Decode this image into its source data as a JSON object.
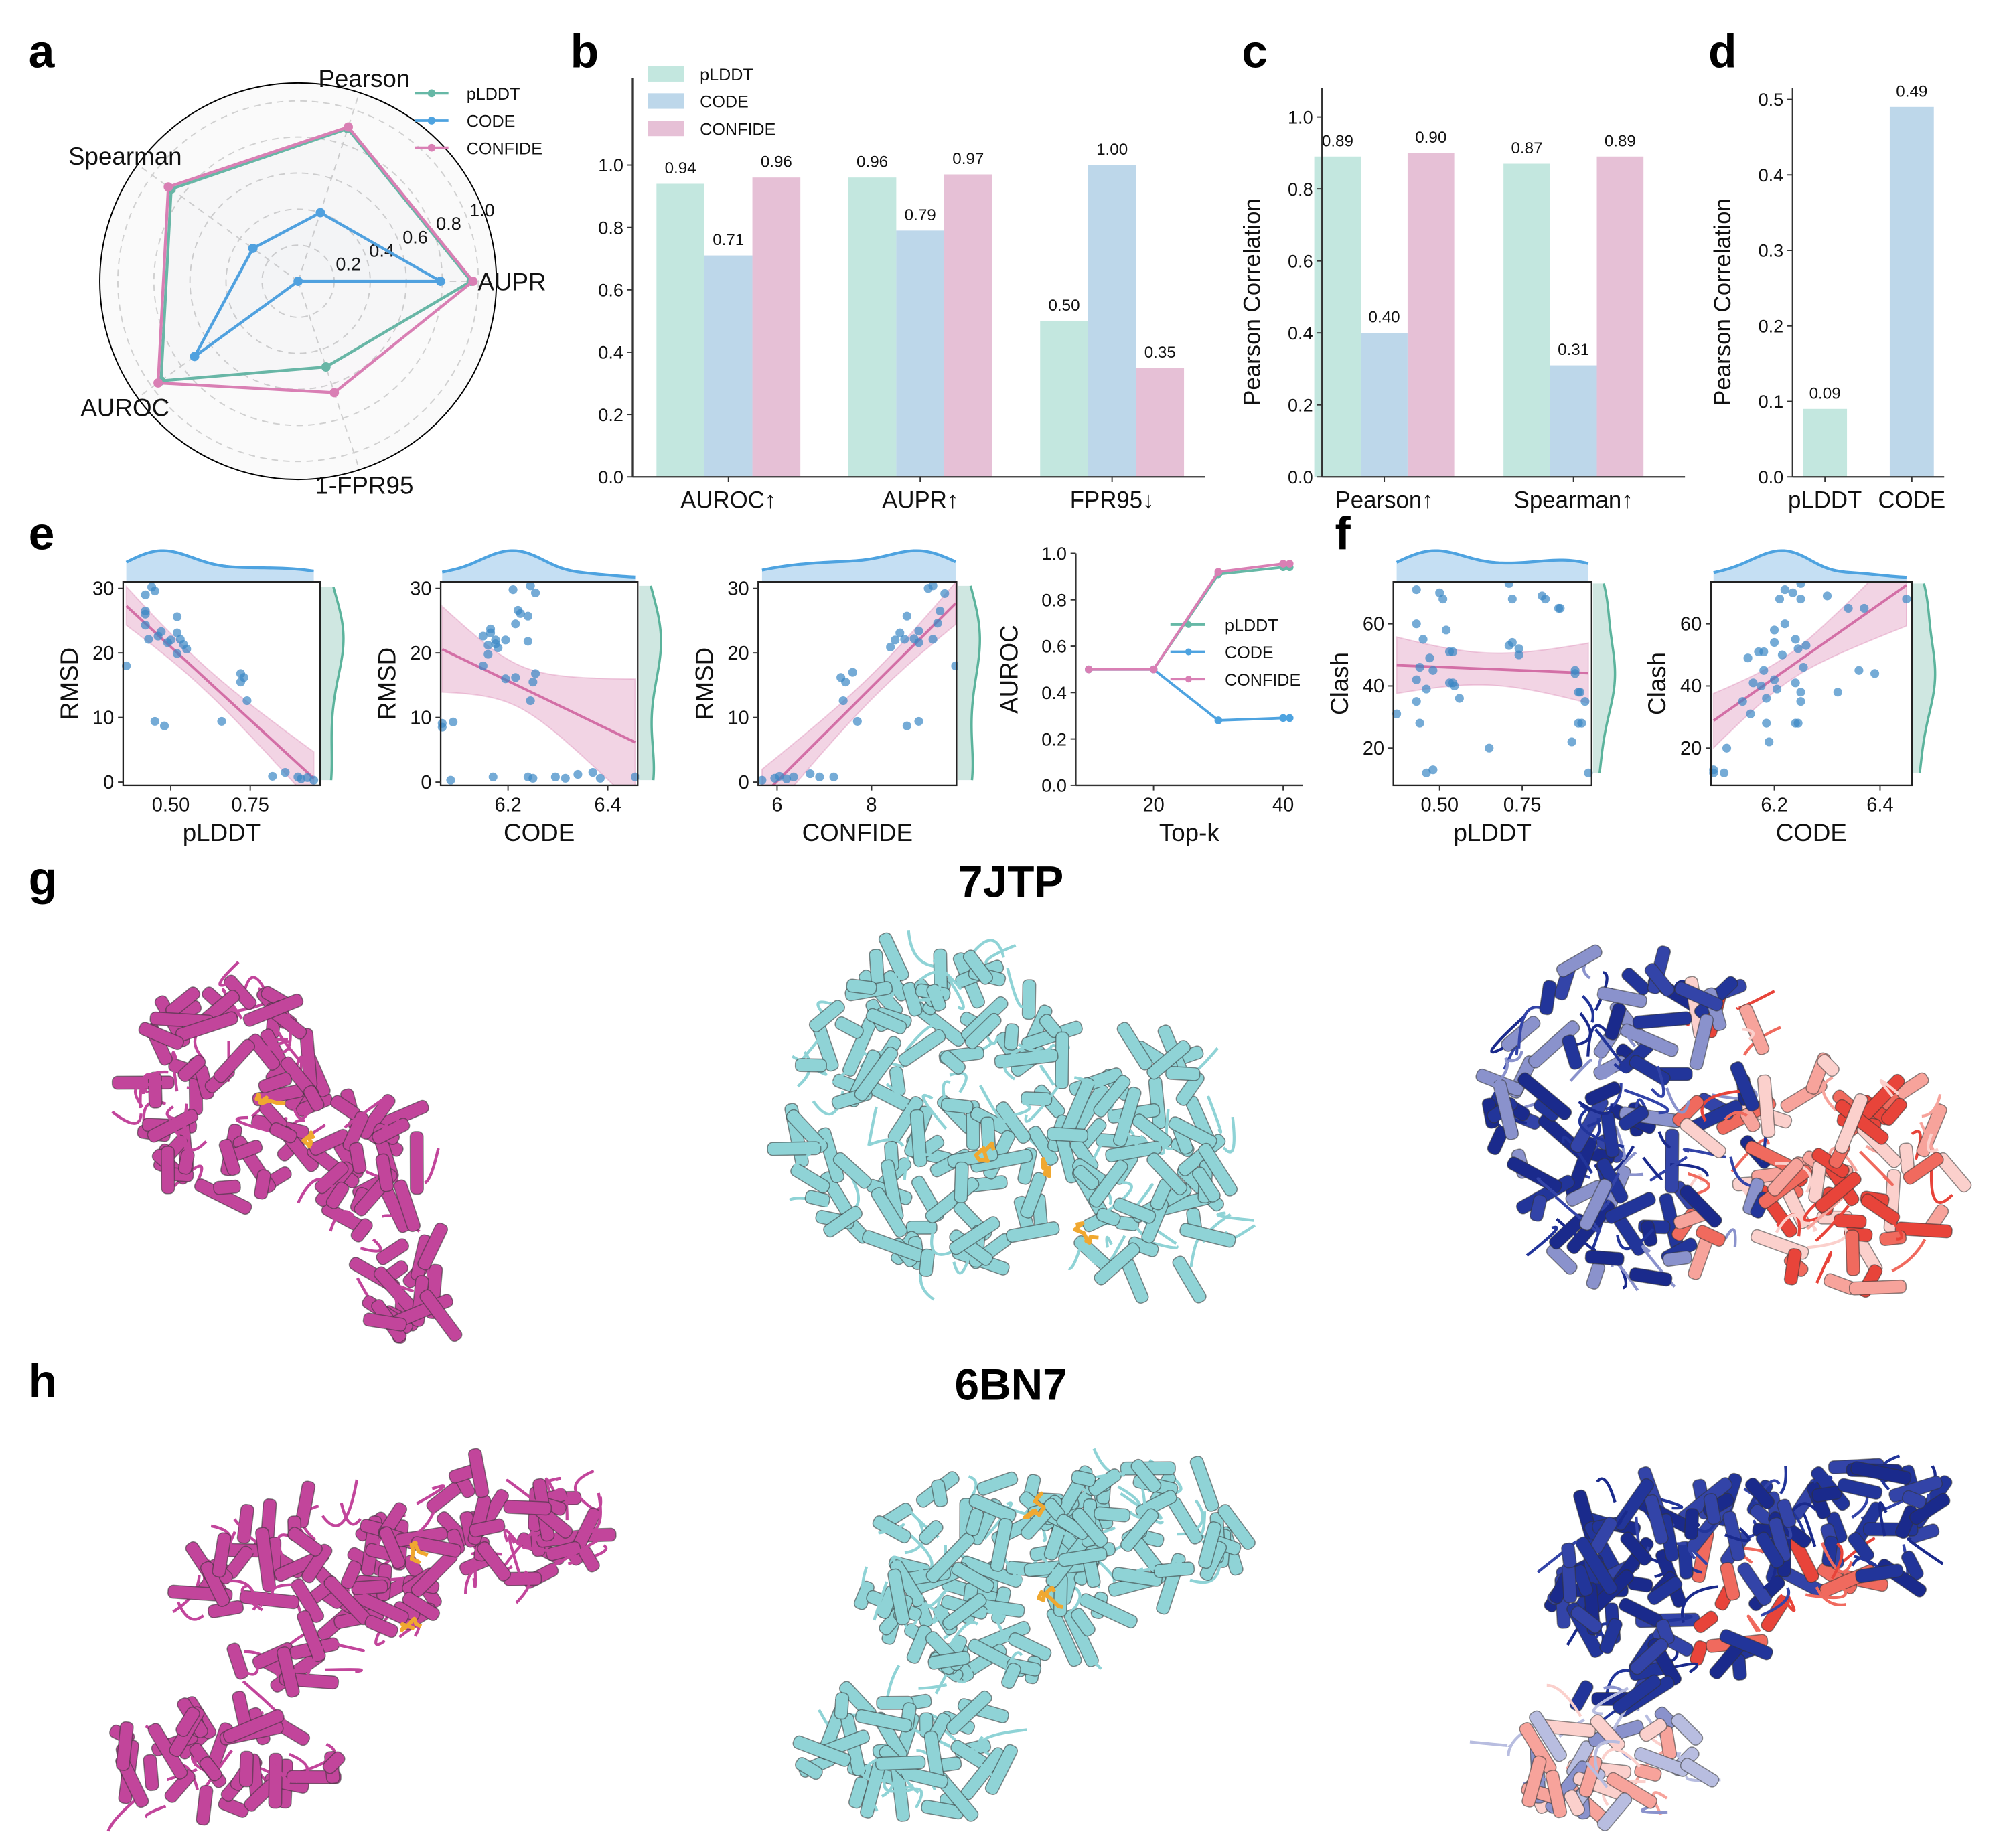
{
  "panel_labels": {
    "a": "a",
    "b": "b",
    "c": "c",
    "d": "d",
    "e": "e",
    "f": "f",
    "g": "g",
    "h": "h"
  },
  "structures": {
    "row_g_title": "7JTP",
    "row_h_title": "6BN7"
  },
  "colors": {
    "pLDDT": "#66b8a6",
    "CODE": "#4ea3e0",
    "CONFIDE": "#d97fb4",
    "pLDDT_bar": "#c3e7df",
    "CODE_bar": "#bdd7ea",
    "CONFIDE_bar": "#e6c0d6",
    "scatter": "#3a87c4",
    "regression": "#d36fa6",
    "ligand": "#f0a830"
  },
  "chart_data": [
    {
      "id": "a",
      "type": "radar",
      "axes": [
        "AUPR",
        "Pearson",
        "Spearman",
        "AUROC",
        "1-FPR95"
      ],
      "rlim": [
        0,
        1.1
      ],
      "rticks": [
        0.2,
        0.4,
        0.6,
        0.8,
        1.0
      ],
      "rtick_labels": [
        "0.2",
        "0.4",
        "0.6",
        "0.8",
        "1.0"
      ],
      "grid": true,
      "legend": "top-right",
      "series": [
        {
          "name": "pLDDT",
          "values": [
            0.96,
            0.89,
            0.87,
            0.94,
            0.5
          ]
        },
        {
          "name": "CODE",
          "values": [
            0.79,
            0.4,
            0.31,
            0.71,
            0.0
          ]
        },
        {
          "name": "CONFIDE",
          "values": [
            0.97,
            0.9,
            0.89,
            0.96,
            0.65
          ]
        }
      ]
    },
    {
      "id": "b",
      "type": "bar",
      "categories": [
        "AUROC↑",
        "AUPR↑",
        "FPR95↓"
      ],
      "ylim": [
        0,
        1.28
      ],
      "yticks": [
        "0.0",
        "0.2",
        "0.4",
        "0.6",
        "0.8",
        "1.0"
      ],
      "legend": "top-left",
      "series": [
        {
          "name": "pLDDT",
          "values": [
            0.94,
            0.96,
            0.5
          ],
          "labels": [
            "0.94",
            "0.96",
            "0.50"
          ]
        },
        {
          "name": "CODE",
          "values": [
            0.71,
            0.79,
            1.0
          ],
          "labels": [
            "0.71",
            "0.79",
            "1.00"
          ]
        },
        {
          "name": "CONFIDE",
          "values": [
            0.96,
            0.97,
            0.35
          ],
          "labels": [
            "0.96",
            "0.97",
            "0.35"
          ]
        }
      ]
    },
    {
      "id": "c",
      "type": "bar",
      "categories": [
        "Pearson↑",
        "Spearman↑"
      ],
      "ylabel": "Pearson Correlation",
      "ylim": [
        0,
        1.08
      ],
      "yticks": [
        "0.0",
        "0.2",
        "0.4",
        "0.6",
        "0.8",
        "1.0"
      ],
      "series": [
        {
          "name": "pLDDT",
          "values": [
            0.89,
            0.87
          ],
          "labels": [
            "0.89",
            "0.87"
          ]
        },
        {
          "name": "CODE",
          "values": [
            0.4,
            0.31
          ],
          "labels": [
            "0.40",
            "0.31"
          ]
        },
        {
          "name": "CONFIDE",
          "values": [
            0.9,
            0.89
          ],
          "labels": [
            "0.90",
            "0.89"
          ]
        }
      ]
    },
    {
      "id": "d",
      "type": "bar",
      "categories": [
        "pLDDT",
        "CODE"
      ],
      "ylabel": "Pearson Correlation",
      "ylim": [
        0,
        0.515
      ],
      "yticks": [
        "0.0",
        "0.1",
        "0.2",
        "0.3",
        "0.4",
        "0.5"
      ],
      "series": [
        {
          "name": "value",
          "values": [
            0.09,
            0.49
          ],
          "labels": [
            "0.09",
            "0.49"
          ]
        }
      ]
    },
    {
      "id": "e1",
      "type": "scatter",
      "xlabel": "pLDDT",
      "ylabel": "RMSD",
      "xlim": [
        0.35,
        0.97
      ],
      "ylim": [
        -0.5,
        31
      ],
      "xticks": [
        "0.50",
        "0.75"
      ],
      "yticks": [
        "0",
        "10",
        "20",
        "30"
      ],
      "points": [
        [
          0.36,
          18
        ],
        [
          0.42,
          29
        ],
        [
          0.44,
          30.2
        ],
        [
          0.45,
          29.6
        ],
        [
          0.42,
          26.5
        ],
        [
          0.42,
          26
        ],
        [
          0.42,
          24.3
        ],
        [
          0.43,
          22.1
        ],
        [
          0.47,
          23.3
        ],
        [
          0.46,
          22.6
        ],
        [
          0.49,
          21.6
        ],
        [
          0.5,
          22
        ],
        [
          0.52,
          25.6
        ],
        [
          0.52,
          23.1
        ],
        [
          0.53,
          22.1
        ],
        [
          0.54,
          21.3
        ],
        [
          0.55,
          20.6
        ],
        [
          0.52,
          19.9
        ],
        [
          0.45,
          9.4
        ],
        [
          0.48,
          8.7
        ],
        [
          0.66,
          9.4
        ],
        [
          0.72,
          16.8
        ],
        [
          0.72,
          15.5
        ],
        [
          0.73,
          16.2
        ],
        [
          0.74,
          12.6
        ],
        [
          0.82,
          0.9
        ],
        [
          0.86,
          1.5
        ],
        [
          0.9,
          0.8
        ],
        [
          0.91,
          0.5
        ],
        [
          0.93,
          0.7
        ],
        [
          0.95,
          0.3
        ]
      ]
    },
    {
      "id": "e2",
      "type": "scatter",
      "xlabel": "CODE",
      "ylabel": "RMSD",
      "xlim": [
        6.065,
        6.46
      ],
      "ylim": [
        -0.5,
        31
      ],
      "xticks": [
        "6.2",
        "6.4"
      ],
      "yticks": [
        "0",
        "10",
        "20",
        "30"
      ],
      "points": [
        [
          6.068,
          9.1
        ],
        [
          6.068,
          8.5
        ],
        [
          6.09,
          9.3
        ],
        [
          6.085,
          0.3
        ],
        [
          6.15,
          22.6
        ],
        [
          6.16,
          21.2
        ],
        [
          6.165,
          23.1
        ],
        [
          6.165,
          23.7
        ],
        [
          6.175,
          22
        ],
        [
          6.18,
          20.8
        ],
        [
          6.195,
          22
        ],
        [
          6.175,
          21.4
        ],
        [
          6.15,
          18
        ],
        [
          6.16,
          19.8
        ],
        [
          6.21,
          29.8
        ],
        [
          6.22,
          26.6
        ],
        [
          6.225,
          26.1
        ],
        [
          6.215,
          24.5
        ],
        [
          6.245,
          30.4
        ],
        [
          6.255,
          29.3
        ],
        [
          6.24,
          21.8
        ],
        [
          6.24,
          25.7
        ],
        [
          6.195,
          16
        ],
        [
          6.215,
          16.2
        ],
        [
          6.25,
          15.5
        ],
        [
          6.255,
          16.8
        ],
        [
          6.245,
          12.6
        ],
        [
          6.17,
          0.8
        ],
        [
          6.24,
          0.8
        ],
        [
          6.25,
          0.6
        ],
        [
          6.295,
          0.8
        ],
        [
          6.315,
          0.6
        ],
        [
          6.34,
          1.2
        ],
        [
          6.37,
          1.5
        ],
        [
          6.385,
          0.6
        ],
        [
          6.455,
          0.8
        ]
      ]
    },
    {
      "id": "e3",
      "type": "scatter",
      "xlabel": "CONFIDE",
      "ylabel": "RMSD",
      "xlim": [
        5.6,
        9.8
      ],
      "ylim": [
        -0.5,
        31
      ],
      "xticks": [
        "6",
        "8"
      ],
      "yticks": [
        "0",
        "10",
        "20",
        "30"
      ],
      "points": [
        [
          5.68,
          0.3
        ],
        [
          5.95,
          0.6
        ],
        [
          6.05,
          0.9
        ],
        [
          6.2,
          0.5
        ],
        [
          6.35,
          0.8
        ],
        [
          6.7,
          1.3
        ],
        [
          6.9,
          0.8
        ],
        [
          7.2,
          0.8
        ],
        [
          7.35,
          16.2
        ],
        [
          7.45,
          15.5
        ],
        [
          7.6,
          17
        ],
        [
          7.4,
          12.6
        ],
        [
          7.7,
          9.4
        ],
        [
          8.4,
          20.9
        ],
        [
          8.5,
          22
        ],
        [
          8.6,
          23.1
        ],
        [
          8.7,
          22.1
        ],
        [
          8.75,
          25.7
        ],
        [
          8.9,
          22.2
        ],
        [
          9.0,
          23.4
        ],
        [
          9.0,
          21.6
        ],
        [
          8.75,
          8.7
        ],
        [
          9.0,
          9.4
        ],
        [
          9.3,
          22.1
        ],
        [
          9.4,
          24.6
        ],
        [
          9.45,
          26.5
        ],
        [
          9.2,
          30
        ],
        [
          9.3,
          30.4
        ],
        [
          9.55,
          29.2
        ],
        [
          9.78,
          18
        ]
      ]
    },
    {
      "id": "e4",
      "type": "line",
      "xlabel": "Top-k",
      "ylabel": "AUROC",
      "xlim": [
        8,
        43
      ],
      "ylim": [
        0,
        1
      ],
      "xticks": [
        "20",
        "40"
      ],
      "yticks": [
        "0.0",
        "0.2",
        "0.4",
        "0.6",
        "0.8",
        "1.0"
      ],
      "legend": "center-right",
      "x": [
        10,
        20,
        30,
        40,
        41
      ],
      "series": [
        {
          "name": "pLDDT",
          "values": [
            0.5,
            0.5,
            0.91,
            0.94,
            0.94
          ]
        },
        {
          "name": "CODE",
          "values": [
            0.5,
            0.5,
            0.28,
            0.29,
            0.29
          ]
        },
        {
          "name": "CONFIDE",
          "values": [
            0.5,
            0.5,
            0.92,
            0.955,
            0.955
          ]
        }
      ]
    },
    {
      "id": "f1",
      "type": "scatter",
      "xlabel": "pLDDT",
      "ylabel": "Clash",
      "xlim": [
        0.36,
        0.96
      ],
      "ylim": [
        8,
        73.5
      ],
      "xticks": [
        "0.50",
        "0.75"
      ],
      "yticks": [
        "20",
        "40",
        "60"
      ],
      "points": [
        [
          0.37,
          31
        ],
        [
          0.43,
          71
        ],
        [
          0.43,
          60
        ],
        [
          0.44,
          46
        ],
        [
          0.43,
          42
        ],
        [
          0.43,
          35
        ],
        [
          0.44,
          28
        ],
        [
          0.45,
          55
        ],
        [
          0.46,
          39
        ],
        [
          0.47,
          49
        ],
        [
          0.48,
          45
        ],
        [
          0.46,
          12
        ],
        [
          0.48,
          13
        ],
        [
          0.5,
          70
        ],
        [
          0.51,
          68
        ],
        [
          0.52,
          58
        ],
        [
          0.53,
          51
        ],
        [
          0.54,
          51
        ],
        [
          0.53,
          41
        ],
        [
          0.54,
          41
        ],
        [
          0.545,
          40
        ],
        [
          0.56,
          36
        ],
        [
          0.65,
          20
        ],
        [
          0.71,
          53
        ],
        [
          0.72,
          54
        ],
        [
          0.72,
          68
        ],
        [
          0.71,
          73
        ],
        [
          0.74,
          52
        ],
        [
          0.74,
          50
        ],
        [
          0.81,
          69
        ],
        [
          0.82,
          68
        ],
        [
          0.86,
          65
        ],
        [
          0.865,
          65
        ],
        [
          0.9,
          22
        ],
        [
          0.91,
          45
        ],
        [
          0.91,
          44
        ],
        [
          0.92,
          38
        ],
        [
          0.925,
          38
        ],
        [
          0.92,
          28
        ],
        [
          0.93,
          28
        ],
        [
          0.94,
          35
        ],
        [
          0.95,
          12
        ]
      ]
    },
    {
      "id": "f2",
      "type": "scatter",
      "xlabel": "CODE",
      "ylabel": "Clash",
      "xlim": [
        6.08,
        6.46
      ],
      "ylim": [
        8,
        73.5
      ],
      "xticks": [
        "6.2",
        "6.4"
      ],
      "yticks": [
        "20",
        "40",
        "60"
      ],
      "points": [
        [
          6.085,
          13
        ],
        [
          6.085,
          12
        ],
        [
          6.105,
          12
        ],
        [
          6.11,
          20
        ],
        [
          6.14,
          35
        ],
        [
          6.15,
          49
        ],
        [
          6.155,
          31
        ],
        [
          6.16,
          41
        ],
        [
          6.17,
          51
        ],
        [
          6.175,
          40
        ],
        [
          6.18,
          51
        ],
        [
          6.18,
          45
        ],
        [
          6.185,
          36
        ],
        [
          6.185,
          28
        ],
        [
          6.19,
          22
        ],
        [
          6.2,
          58
        ],
        [
          6.2,
          54
        ],
        [
          6.2,
          42
        ],
        [
          6.205,
          39
        ],
        [
          6.21,
          68
        ],
        [
          6.215,
          50
        ],
        [
          6.22,
          60
        ],
        [
          6.22,
          71
        ],
        [
          6.235,
          70
        ],
        [
          6.24,
          41
        ],
        [
          6.24,
          55
        ],
        [
          6.24,
          28
        ],
        [
          6.245,
          28
        ],
        [
          6.245,
          52
        ],
        [
          6.25,
          73
        ],
        [
          6.25,
          68
        ],
        [
          6.25,
          38
        ],
        [
          6.25,
          35
        ],
        [
          6.255,
          46
        ],
        [
          6.26,
          53
        ],
        [
          6.3,
          69
        ],
        [
          6.32,
          38
        ],
        [
          6.34,
          65
        ],
        [
          6.36,
          45
        ],
        [
          6.37,
          65
        ],
        [
          6.39,
          44
        ],
        [
          6.45,
          68
        ]
      ]
    }
  ]
}
